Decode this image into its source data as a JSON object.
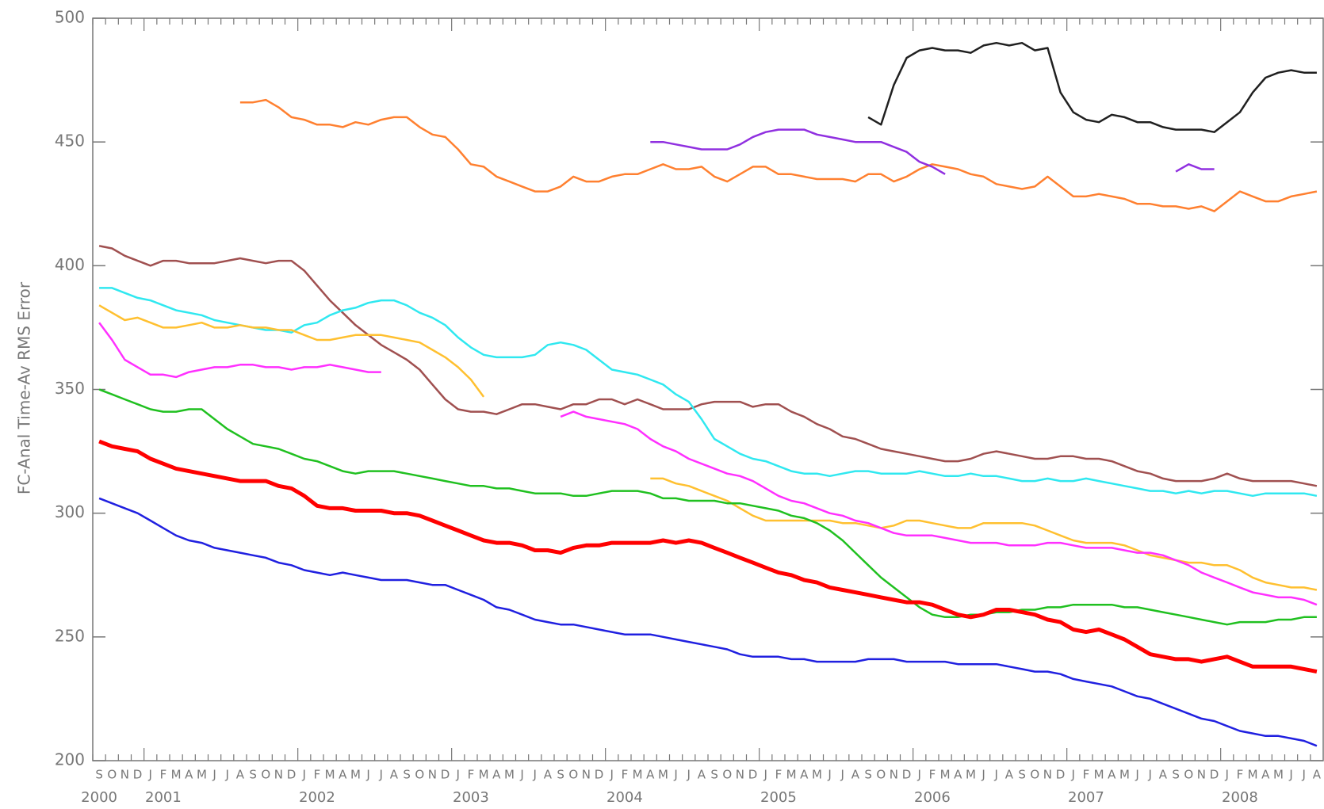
{
  "chart_data": {
    "type": "line",
    "y_label": "FC-Anal Time-Av RMS Error",
    "ylim": [
      200,
      500
    ],
    "yticks": [
      200,
      250,
      300,
      350,
      400,
      450,
      500
    ],
    "categories": [
      "S",
      "O",
      "N",
      "D",
      "J",
      "F",
      "M",
      "A",
      "M",
      "J",
      "J",
      "A",
      "S",
      "O",
      "N",
      "D",
      "J",
      "F",
      "M",
      "A",
      "M",
      "J",
      "J",
      "A",
      "S",
      "O",
      "N",
      "D",
      "J",
      "F",
      "M",
      "A",
      "M",
      "J",
      "J",
      "A",
      "S",
      "O",
      "N",
      "D",
      "J",
      "F",
      "M",
      "A",
      "M",
      "J",
      "J",
      "A",
      "S",
      "O",
      "N",
      "D",
      "J",
      "F",
      "M",
      "A",
      "M",
      "J",
      "J",
      "A",
      "S",
      "O",
      "N",
      "D",
      "J",
      "F",
      "M",
      "A",
      "M",
      "J",
      "J",
      "A",
      "S",
      "O",
      "N",
      "D",
      "J",
      "F",
      "M",
      "A",
      "M",
      "J",
      "J",
      "A",
      "S",
      "O",
      "N",
      "D",
      "J",
      "F",
      "M",
      "A",
      "M",
      "J",
      "J",
      "A"
    ],
    "years": [
      "2000",
      null,
      null,
      null,
      null,
      "2001",
      null,
      null,
      null,
      null,
      null,
      null,
      null,
      null,
      null,
      null,
      null,
      "2002",
      null,
      null,
      null,
      null,
      null,
      null,
      null,
      null,
      null,
      null,
      null,
      "2003",
      null,
      null,
      null,
      null,
      null,
      null,
      null,
      null,
      null,
      null,
      null,
      "2004",
      null,
      null,
      null,
      null,
      null,
      null,
      null,
      null,
      null,
      null,
      null,
      "2005",
      null,
      null,
      null,
      null,
      null,
      null,
      null,
      null,
      null,
      null,
      null,
      "2006",
      null,
      null,
      null,
      null,
      null,
      null,
      null,
      null,
      null,
      null,
      null,
      "2007",
      null,
      null,
      null,
      null,
      null,
      null,
      null,
      null,
      null,
      null,
      null,
      "2008",
      null,
      null,
      null,
      null,
      null,
      null
    ],
    "series": [
      {
        "color": "#ff8030",
        "width": 2.5,
        "values": [
          null,
          null,
          null,
          null,
          null,
          null,
          null,
          null,
          null,
          null,
          null,
          466,
          466,
          467,
          464,
          460,
          459,
          457,
          457,
          456,
          458,
          457,
          459,
          460,
          460,
          456,
          453,
          452,
          447,
          441,
          440,
          436,
          434,
          432,
          430,
          430,
          432,
          436,
          434,
          434,
          436,
          437,
          437,
          439,
          441,
          439,
          439,
          440,
          436,
          434,
          437,
          440,
          440,
          437,
          437,
          436,
          435,
          435,
          435,
          434,
          437,
          437,
          434,
          436,
          439,
          441,
          440,
          439,
          437,
          436,
          433,
          432,
          431,
          432,
          436,
          432,
          428,
          428,
          429,
          428,
          427,
          425,
          425,
          424,
          424,
          423,
          424,
          422,
          426,
          430,
          428,
          426,
          426,
          428,
          429,
          430
        ]
      },
      {
        "color": "#9030e0",
        "width": 2.5,
        "values": [
          null,
          null,
          null,
          null,
          null,
          null,
          null,
          null,
          null,
          null,
          null,
          null,
          null,
          null,
          null,
          null,
          null,
          null,
          null,
          null,
          null,
          null,
          null,
          null,
          null,
          null,
          null,
          null,
          null,
          null,
          null,
          null,
          null,
          null,
          null,
          null,
          null,
          null,
          null,
          null,
          null,
          null,
          null,
          450,
          450,
          449,
          448,
          447,
          447,
          447,
          449,
          452,
          454,
          455,
          455,
          455,
          453,
          452,
          451,
          450,
          450,
          450,
          448,
          446,
          442,
          440,
          437,
          null,
          null,
          null,
          null,
          null,
          null,
          null,
          null,
          null,
          null,
          null,
          null,
          null,
          null,
          null,
          null,
          null,
          438,
          441,
          439,
          439,
          null,
          null,
          null,
          null,
          null,
          null,
          null,
          null
        ]
      },
      {
        "color": "#202020",
        "width": 2.5,
        "values": [
          null,
          null,
          null,
          null,
          null,
          null,
          null,
          null,
          null,
          null,
          null,
          null,
          null,
          null,
          null,
          null,
          null,
          null,
          null,
          null,
          null,
          null,
          null,
          null,
          null,
          null,
          null,
          null,
          null,
          null,
          null,
          null,
          null,
          null,
          null,
          null,
          null,
          null,
          null,
          null,
          null,
          null,
          null,
          null,
          null,
          null,
          null,
          null,
          null,
          null,
          null,
          null,
          null,
          null,
          null,
          null,
          null,
          null,
          null,
          null,
          460,
          457,
          473,
          484,
          487,
          488,
          487,
          487,
          486,
          489,
          490,
          489,
          490,
          487,
          488,
          470,
          462,
          459,
          458,
          461,
          460,
          458,
          458,
          456,
          455,
          455,
          455,
          454,
          458,
          462,
          470,
          476,
          478,
          479,
          478,
          478
        ]
      },
      {
        "color": "#a05050",
        "width": 2.5,
        "values": [
          408,
          407,
          404,
          402,
          400,
          402,
          402,
          401,
          401,
          401,
          402,
          403,
          402,
          401,
          402,
          402,
          398,
          392,
          386,
          381,
          376,
          372,
          368,
          365,
          362,
          358,
          352,
          346,
          342,
          341,
          341,
          340,
          342,
          344,
          344,
          343,
          342,
          344,
          344,
          346,
          346,
          344,
          346,
          344,
          342,
          342,
          342,
          344,
          345,
          345,
          345,
          343,
          344,
          344,
          341,
          339,
          336,
          334,
          331,
          330,
          328,
          326,
          325,
          324,
          323,
          322,
          321,
          321,
          322,
          324,
          325,
          324,
          323,
          322,
          322,
          323,
          323,
          322,
          322,
          321,
          319,
          317,
          316,
          314,
          313,
          313,
          313,
          314,
          316,
          314,
          313,
          313,
          313,
          313,
          312,
          311
        ]
      },
      {
        "color": "#30e8f0",
        "width": 2.5,
        "values": [
          391,
          391,
          389,
          387,
          386,
          384,
          382,
          381,
          380,
          378,
          377,
          376,
          375,
          374,
          374,
          373,
          376,
          377,
          380,
          382,
          383,
          385,
          386,
          386,
          384,
          381,
          379,
          376,
          371,
          367,
          364,
          363,
          363,
          363,
          364,
          368,
          369,
          368,
          366,
          362,
          358,
          357,
          356,
          354,
          352,
          348,
          345,
          338,
          330,
          327,
          324,
          322,
          321,
          319,
          317,
          316,
          316,
          315,
          316,
          317,
          317,
          316,
          316,
          316,
          317,
          316,
          315,
          315,
          316,
          315,
          315,
          314,
          313,
          313,
          314,
          313,
          313,
          314,
          313,
          312,
          311,
          310,
          309,
          309,
          308,
          309,
          308,
          309,
          309,
          308,
          307,
          308,
          308,
          308,
          308,
          307
        ]
      },
      {
        "color": "#ffc030",
        "width": 2.5,
        "values": [
          384,
          381,
          378,
          379,
          377,
          375,
          375,
          376,
          377,
          375,
          375,
          376,
          375,
          375,
          374,
          374,
          372,
          370,
          370,
          371,
          372,
          372,
          372,
          371,
          370,
          369,
          366,
          363,
          359,
          354,
          347,
          null,
          null,
          null,
          null,
          null,
          null,
          null,
          null,
          null,
          null,
          null,
          null,
          314,
          314,
          312,
          311,
          309,
          307,
          305,
          302,
          299,
          297,
          297,
          297,
          297,
          297,
          297,
          296,
          296,
          295,
          294,
          295,
          297,
          297,
          296,
          295,
          294,
          294,
          296,
          296,
          296,
          296,
          295,
          293,
          291,
          289,
          288,
          288,
          288,
          287,
          285,
          283,
          282,
          281,
          280,
          280,
          279,
          279,
          277,
          274,
          272,
          271,
          270,
          270,
          269
        ]
      },
      {
        "color": "#ff30ff",
        "width": 2.5,
        "values": [
          377,
          370,
          362,
          359,
          356,
          356,
          355,
          357,
          358,
          359,
          359,
          360,
          360,
          359,
          359,
          358,
          359,
          359,
          360,
          359,
          358,
          357,
          357,
          null,
          null,
          null,
          null,
          null,
          null,
          null,
          null,
          null,
          null,
          null,
          null,
          null,
          339,
          341,
          339,
          338,
          337,
          336,
          334,
          330,
          327,
          325,
          322,
          320,
          318,
          316,
          315,
          313,
          310,
          307,
          305,
          304,
          302,
          300,
          299,
          297,
          296,
          294,
          292,
          291,
          291,
          291,
          290,
          289,
          288,
          288,
          288,
          287,
          287,
          287,
          288,
          288,
          287,
          286,
          286,
          286,
          285,
          284,
          284,
          283,
          281,
          279,
          276,
          274,
          272,
          270,
          268,
          267,
          266,
          266,
          265,
          263
        ]
      },
      {
        "color": "#20c020",
        "width": 2.5,
        "values": [
          350,
          348,
          346,
          344,
          342,
          341,
          341,
          342,
          342,
          338,
          334,
          331,
          328,
          327,
          326,
          324,
          322,
          321,
          319,
          317,
          316,
          317,
          317,
          317,
          316,
          315,
          314,
          313,
          312,
          311,
          311,
          310,
          310,
          309,
          308,
          308,
          308,
          307,
          307,
          308,
          309,
          309,
          309,
          308,
          306,
          306,
          305,
          305,
          305,
          304,
          304,
          303,
          302,
          301,
          299,
          298,
          296,
          293,
          289,
          284,
          279,
          274,
          270,
          266,
          262,
          259,
          258,
          258,
          259,
          259,
          260,
          260,
          261,
          261,
          262,
          262,
          263,
          263,
          263,
          263,
          262,
          262,
          261,
          260,
          259,
          258,
          257,
          256,
          255,
          256,
          256,
          256,
          257,
          257,
          258,
          258
        ]
      },
      {
        "color": "#2020e0",
        "width": 2.5,
        "values": [
          306,
          304,
          302,
          300,
          297,
          294,
          291,
          289,
          288,
          286,
          285,
          284,
          283,
          282,
          280,
          279,
          277,
          276,
          275,
          276,
          275,
          274,
          273,
          273,
          273,
          272,
          271,
          271,
          269,
          267,
          265,
          262,
          261,
          259,
          257,
          256,
          255,
          255,
          254,
          253,
          252,
          251,
          251,
          251,
          250,
          249,
          248,
          247,
          246,
          245,
          243,
          242,
          242,
          242,
          241,
          241,
          240,
          240,
          240,
          240,
          241,
          241,
          241,
          240,
          240,
          240,
          240,
          239,
          239,
          239,
          239,
          238,
          237,
          236,
          236,
          235,
          233,
          232,
          231,
          230,
          228,
          226,
          225,
          223,
          221,
          219,
          217,
          216,
          214,
          212,
          211,
          210,
          210,
          209,
          208,
          206
        ]
      },
      {
        "color": "#ff0000",
        "width": 5,
        "values": [
          329,
          327,
          326,
          325,
          322,
          320,
          318,
          317,
          316,
          315,
          314,
          313,
          313,
          313,
          311,
          310,
          307,
          303,
          302,
          302,
          301,
          301,
          301,
          300,
          300,
          299,
          297,
          295,
          293,
          291,
          289,
          288,
          288,
          287,
          285,
          285,
          284,
          286,
          287,
          287,
          288,
          288,
          288,
          288,
          289,
          288,
          289,
          288,
          286,
          284,
          282,
          280,
          278,
          276,
          275,
          273,
          272,
          270,
          269,
          268,
          267,
          266,
          265,
          264,
          264,
          263,
          261,
          259,
          258,
          259,
          261,
          261,
          260,
          259,
          257,
          256,
          253,
          252,
          253,
          251,
          249,
          246,
          243,
          242,
          241,
          241,
          240,
          241,
          242,
          240,
          238,
          238,
          238,
          238,
          237,
          236
        ]
      }
    ]
  }
}
